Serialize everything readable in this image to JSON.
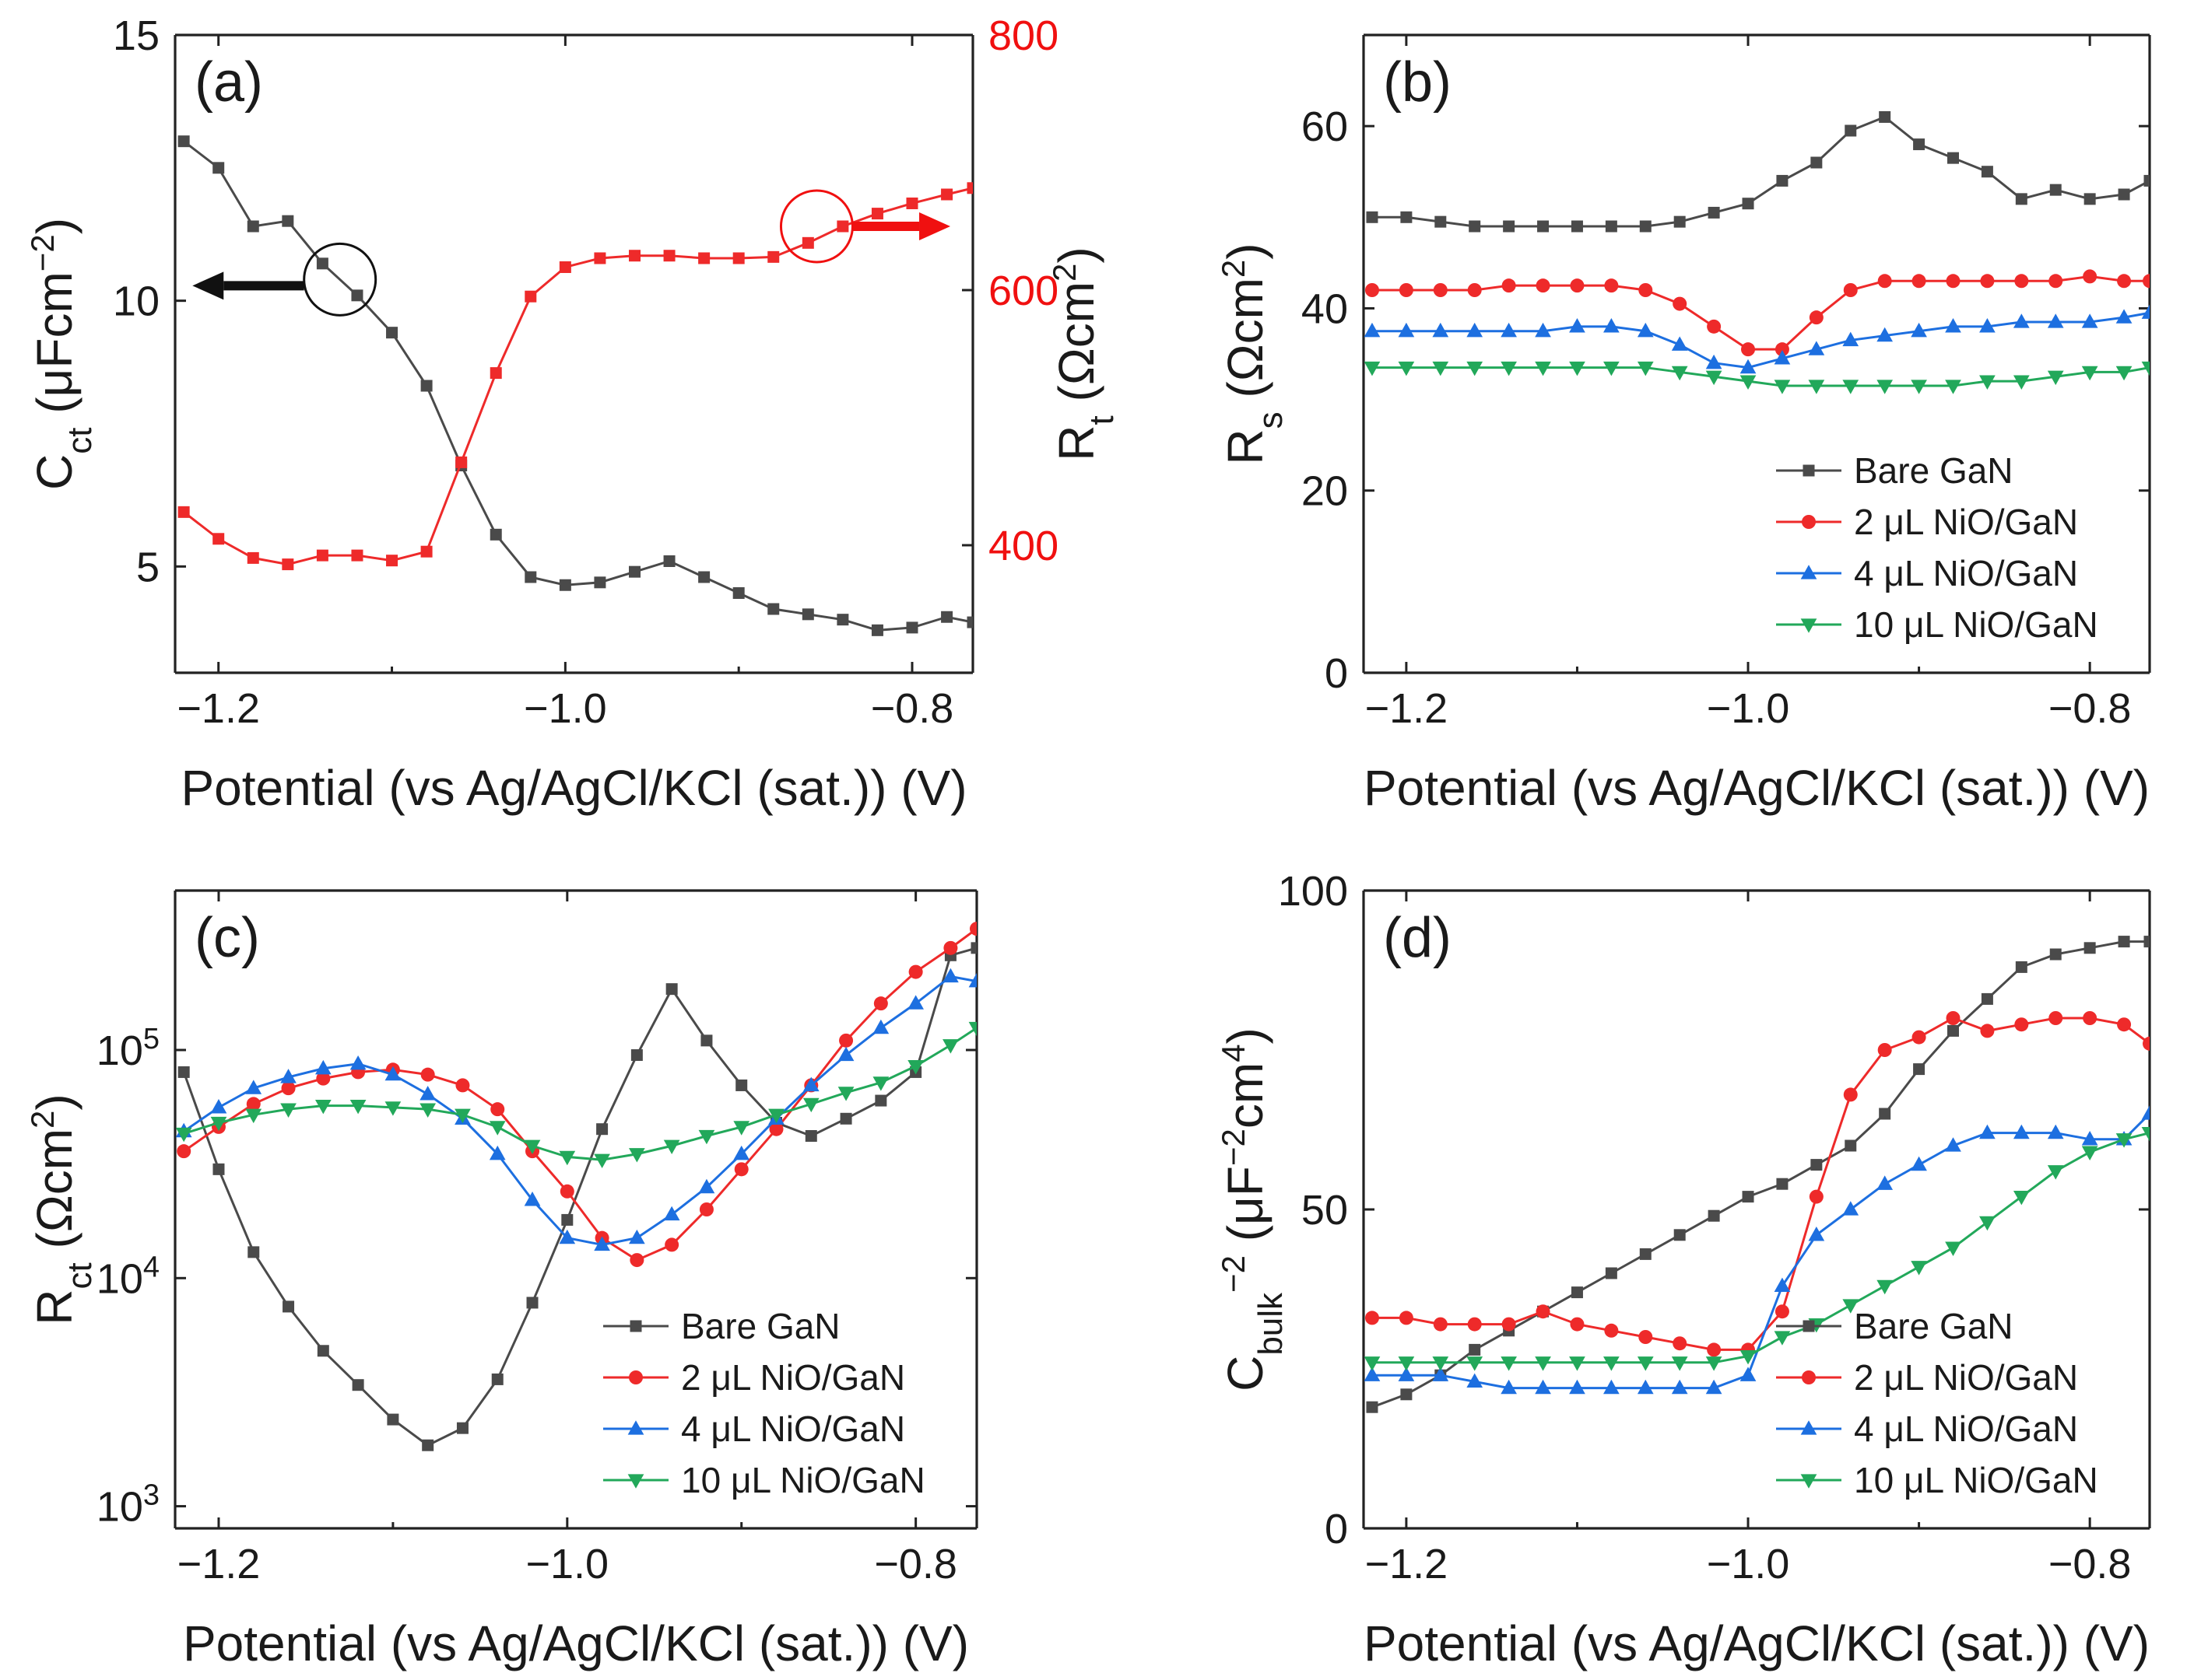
{
  "colors": {
    "bare": "#4a4a4a",
    "ni2": "#ee2a2a",
    "ni4": "#1d6fe0",
    "ni10": "#22a85a",
    "red_axis": "#f01010",
    "black": "#111111"
  },
  "chart_data": [
    {
      "id": "a",
      "panel_label": "(a)",
      "type": "line",
      "xlabel": "Potential (vs Ag/AgCl/KCl (sat.)) (V)",
      "ylabel": "C_ct (μFcm⁻²)",
      "ylabel_parts": {
        "main": "C",
        "sub": "ct",
        "unit": " (μFcm",
        "sup": "−2",
        "close": ")"
      },
      "y2label_parts": {
        "main": "R",
        "sub": "t",
        "unit": " (Ωcm",
        "sup": "2",
        "close": ")"
      },
      "xlim": [
        -1.225,
        -0.765
      ],
      "ylim": [
        3,
        15
      ],
      "y2lim": [
        300,
        800
      ],
      "xticks": [
        -1.2,
        -1.0,
        -0.8
      ],
      "xtick_labels": [
        "-1.2",
        "-1.0",
        "-0.8"
      ],
      "yticks": [
        5,
        10,
        15
      ],
      "ytick_labels": [
        "5",
        "10",
        "15"
      ],
      "y2ticks": [
        400,
        600,
        800
      ],
      "y2tick_labels": [
        "400",
        "600",
        "800"
      ],
      "series": [
        {
          "name": "C_ct",
          "axis": "left",
          "color_key": "bare",
          "marker": "square",
          "x": [
            -1.22,
            -1.2,
            -1.18,
            -1.16,
            -1.14,
            -1.12,
            -1.1,
            -1.08,
            -1.06,
            -1.04,
            -1.02,
            -1.0,
            -0.98,
            -0.96,
            -0.94,
            -0.92,
            -0.9,
            -0.88,
            -0.86,
            -0.84,
            -0.82,
            -0.8,
            -0.78,
            -0.765
          ],
          "y": [
            13.0,
            12.5,
            11.4,
            11.5,
            10.7,
            10.1,
            9.4,
            8.4,
            6.9,
            5.6,
            4.8,
            4.65,
            4.7,
            4.9,
            5.1,
            4.8,
            4.5,
            4.2,
            4.1,
            4.0,
            3.8,
            3.85,
            4.05,
            3.95
          ]
        },
        {
          "name": "R_t",
          "axis": "right",
          "color_key": "ni2",
          "marker": "square",
          "x": [
            -1.22,
            -1.2,
            -1.18,
            -1.16,
            -1.14,
            -1.12,
            -1.1,
            -1.08,
            -1.06,
            -1.04,
            -1.02,
            -1.0,
            -0.98,
            -0.96,
            -0.94,
            -0.92,
            -0.9,
            -0.88,
            -0.86,
            -0.84,
            -0.82,
            -0.8,
            -0.78,
            -0.765
          ],
          "y": [
            426,
            405,
            390,
            385,
            392,
            392,
            388,
            395,
            465,
            535,
            595,
            618,
            625,
            627,
            627,
            625,
            625,
            626,
            637,
            650,
            660,
            668,
            675,
            680
          ]
        }
      ],
      "annotations": {
        "left_arrow": "points to left axis",
        "right_arrow": "points to right axis"
      }
    },
    {
      "id": "b",
      "panel_label": "(b)",
      "type": "line",
      "xlabel": "Potential (vs Ag/AgCl/KCl (sat.)) (V)",
      "ylabel_parts": {
        "main": "R",
        "sub": "s",
        "unit": " (Ωcm",
        "sup": "2",
        "close": ")"
      },
      "xlim": [
        -1.225,
        -0.765
      ],
      "ylim": [
        0,
        70
      ],
      "xticks": [
        -1.2,
        -1.0,
        -0.8
      ],
      "xtick_labels": [
        "-1.2",
        "-1.0",
        "-0.8"
      ],
      "yticks": [
        0,
        20,
        40,
        60
      ],
      "ytick_labels": [
        "0",
        "20",
        "40",
        "60"
      ],
      "legend": [
        "Bare GaN",
        "2 μL NiO/GaN",
        "4 μL NiO/GaN",
        "10 μL NiO/GaN"
      ],
      "legend_position": "bottom-right",
      "series": [
        {
          "name": "Bare GaN",
          "color_key": "bare",
          "marker": "square",
          "x": [
            -1.22,
            -1.2,
            -1.18,
            -1.16,
            -1.14,
            -1.12,
            -1.1,
            -1.08,
            -1.06,
            -1.04,
            -1.02,
            -1.0,
            -0.98,
            -0.96,
            -0.94,
            -0.92,
            -0.9,
            -0.88,
            -0.86,
            -0.84,
            -0.82,
            -0.8,
            -0.78,
            -0.765
          ],
          "y": [
            50,
            50,
            49.5,
            49,
            49,
            49,
            49,
            49,
            49,
            49.5,
            50.5,
            51.5,
            54,
            56,
            59.5,
            61,
            58,
            56.5,
            55,
            52,
            53,
            52,
            52.5,
            54
          ]
        },
        {
          "name": "2 μL NiO/GaN",
          "color_key": "ni2",
          "marker": "circle",
          "x": [
            -1.22,
            -1.2,
            -1.18,
            -1.16,
            -1.14,
            -1.12,
            -1.1,
            -1.08,
            -1.06,
            -1.04,
            -1.02,
            -1.0,
            -0.98,
            -0.96,
            -0.94,
            -0.92,
            -0.9,
            -0.88,
            -0.86,
            -0.84,
            -0.82,
            -0.8,
            -0.78,
            -0.765
          ],
          "y": [
            42,
            42,
            42,
            42,
            42.5,
            42.5,
            42.5,
            42.5,
            42,
            40.5,
            38,
            35.5,
            35.5,
            39,
            42,
            43,
            43,
            43,
            43,
            43,
            43,
            43.5,
            43,
            43
          ]
        },
        {
          "name": "4 μL NiO/GaN",
          "color_key": "ni4",
          "marker": "triangle-up",
          "x": [
            -1.22,
            -1.2,
            -1.18,
            -1.16,
            -1.14,
            -1.12,
            -1.1,
            -1.08,
            -1.06,
            -1.04,
            -1.02,
            -1.0,
            -0.98,
            -0.96,
            -0.94,
            -0.92,
            -0.9,
            -0.88,
            -0.86,
            -0.84,
            -0.82,
            -0.8,
            -0.78,
            -0.765
          ],
          "y": [
            37.5,
            37.5,
            37.5,
            37.5,
            37.5,
            37.5,
            38,
            38,
            37.5,
            36,
            34,
            33.5,
            34.5,
            35.5,
            36.5,
            37,
            37.5,
            38,
            38,
            38.5,
            38.5,
            38.5,
            39,
            39.5
          ]
        },
        {
          "name": "10 μL NiO/GaN",
          "color_key": "ni10",
          "marker": "triangle-down",
          "x": [
            -1.22,
            -1.2,
            -1.18,
            -1.16,
            -1.14,
            -1.12,
            -1.1,
            -1.08,
            -1.06,
            -1.04,
            -1.02,
            -1.0,
            -0.98,
            -0.96,
            -0.94,
            -0.92,
            -0.9,
            -0.88,
            -0.86,
            -0.84,
            -0.82,
            -0.8,
            -0.78,
            -0.765
          ],
          "y": [
            33.5,
            33.5,
            33.5,
            33.5,
            33.5,
            33.5,
            33.5,
            33.5,
            33.5,
            33,
            32.5,
            32,
            31.5,
            31.5,
            31.5,
            31.5,
            31.5,
            31.5,
            32,
            32,
            32.5,
            33,
            33,
            33.5
          ]
        }
      ]
    },
    {
      "id": "c",
      "panel_label": "(c)",
      "type": "line",
      "yscale": "log",
      "xlabel": "Potential (vs Ag/AgCl/KCl (sat.)) (V)",
      "ylabel_parts": {
        "main": "R",
        "sub": "ct",
        "unit": " (Ωcm",
        "sup": "2",
        "close": ")"
      },
      "xlim": [
        -1.225,
        -0.765
      ],
      "ylim": [
        800,
        500000
      ],
      "xticks": [
        -1.2,
        -1.0,
        -0.8
      ],
      "xtick_labels": [
        "-1.2",
        "-1.0",
        "-0.8"
      ],
      "yticks": [
        1000,
        10000,
        100000
      ],
      "ytick_labels": [
        {
          "base": "10",
          "exp": "3"
        },
        {
          "base": "10",
          "exp": "4"
        },
        {
          "base": "10",
          "exp": "5"
        }
      ],
      "legend": [
        "Bare GaN",
        "2 μL NiO/GaN",
        "4 μL NiO/GaN",
        "10 μL NiO/GaN"
      ],
      "legend_position": "bottom-right",
      "series": [
        {
          "name": "Bare GaN",
          "color_key": "bare",
          "marker": "square",
          "x": [
            -1.22,
            -1.2,
            -1.18,
            -1.16,
            -1.14,
            -1.12,
            -1.1,
            -1.08,
            -1.06,
            -1.04,
            -1.02,
            -1.0,
            -0.98,
            -0.96,
            -0.94,
            -0.92,
            -0.9,
            -0.88,
            -0.86,
            -0.84,
            -0.82,
            -0.8,
            -0.78,
            -0.765
          ],
          "y": [
            80000,
            30000,
            13000,
            7500,
            4800,
            3400,
            2400,
            1850,
            2200,
            3600,
            7800,
            18000,
            45000,
            95000,
            185000,
            110000,
            70000,
            48000,
            42000,
            50000,
            60000,
            80000,
            260000,
            280000
          ]
        },
        {
          "name": "2 μL NiO/GaN",
          "color_key": "ni2",
          "marker": "circle",
          "x": [
            -1.22,
            -1.2,
            -1.18,
            -1.16,
            -1.14,
            -1.12,
            -1.1,
            -1.08,
            -1.06,
            -1.04,
            -1.02,
            -1.0,
            -0.98,
            -0.96,
            -0.94,
            -0.92,
            -0.9,
            -0.88,
            -0.86,
            -0.84,
            -0.82,
            -0.8,
            -0.78,
            -0.765
          ],
          "y": [
            36000,
            46000,
            58000,
            68000,
            75000,
            80000,
            82000,
            78000,
            70000,
            55000,
            36000,
            24000,
            15000,
            12000,
            14000,
            20000,
            30000,
            45000,
            70000,
            110000,
            160000,
            220000,
            280000,
            340000
          ]
        },
        {
          "name": "4 μL NiO/GaN",
          "color_key": "ni4",
          "marker": "triangle-up",
          "x": [
            -1.22,
            -1.2,
            -1.18,
            -1.16,
            -1.14,
            -1.12,
            -1.1,
            -1.08,
            -1.06,
            -1.04,
            -1.02,
            -1.0,
            -0.98,
            -0.96,
            -0.94,
            -0.92,
            -0.9,
            -0.88,
            -0.86,
            -0.84,
            -0.82,
            -0.8,
            -0.78,
            -0.765
          ],
          "y": [
            44000,
            56000,
            68000,
            76000,
            83000,
            87000,
            78000,
            64000,
            50000,
            35000,
            22000,
            15000,
            14000,
            15000,
            19000,
            25000,
            35000,
            50000,
            70000,
            95000,
            125000,
            160000,
            210000,
            200000
          ]
        },
        {
          "name": "10 μL NiO/GaN",
          "color_key": "ni10",
          "marker": "triangle-down",
          "x": [
            -1.22,
            -1.2,
            -1.18,
            -1.16,
            -1.14,
            -1.12,
            -1.1,
            -1.08,
            -1.06,
            -1.04,
            -1.02,
            -1.0,
            -0.98,
            -0.96,
            -0.94,
            -0.92,
            -0.9,
            -0.88,
            -0.86,
            -0.84,
            -0.82,
            -0.8,
            -0.78,
            -0.765
          ],
          "y": [
            43000,
            48000,
            52000,
            55000,
            57000,
            57000,
            56000,
            55000,
            52000,
            46000,
            38000,
            34000,
            33000,
            35000,
            38000,
            42000,
            46000,
            52000,
            58000,
            65000,
            72000,
            85000,
            105000,
            125000
          ]
        }
      ]
    },
    {
      "id": "d",
      "panel_label": "(d)",
      "type": "line",
      "xlabel": "Potential (vs Ag/AgCl/KCl (sat.)) (V)",
      "ylabel_parts": {
        "main": "C",
        "sub": "bulk",
        "sup1": "−2",
        "unit": " (μF",
        "sup": "−2",
        "close": "cm",
        "sup3": "4",
        "tail": ")"
      },
      "xlim": [
        -1.225,
        -0.765
      ],
      "ylim": [
        0,
        100
      ],
      "xticks": [
        -1.2,
        -1.0,
        -0.8
      ],
      "xtick_labels": [
        "-1.2",
        "-1.0",
        "-0.8"
      ],
      "yticks": [
        0,
        50,
        100
      ],
      "ytick_labels": [
        "0",
        "50",
        "100"
      ],
      "legend": [
        "Bare GaN",
        "2 μL NiO/GaN",
        "4 μL NiO/GaN",
        "10 μL NiO/GaN"
      ],
      "legend_position": "bottom-right",
      "series": [
        {
          "name": "Bare GaN",
          "color_key": "bare",
          "marker": "square",
          "x": [
            -1.22,
            -1.2,
            -1.18,
            -1.16,
            -1.14,
            -1.12,
            -1.1,
            -1.08,
            -1.06,
            -1.04,
            -1.02,
            -1.0,
            -0.98,
            -0.96,
            -0.94,
            -0.92,
            -0.9,
            -0.88,
            -0.86,
            -0.84,
            -0.82,
            -0.8,
            -0.78,
            -0.765
          ],
          "y": [
            19,
            21,
            24,
            28,
            31,
            34,
            37,
            40,
            43,
            46,
            49,
            52,
            54,
            57,
            60,
            65,
            72,
            78,
            83,
            88,
            90,
            91,
            92,
            92
          ]
        },
        {
          "name": "2 μL NiO/GaN",
          "color_key": "ni2",
          "marker": "circle",
          "x": [
            -1.22,
            -1.2,
            -1.18,
            -1.16,
            -1.14,
            -1.12,
            -1.1,
            -1.08,
            -1.06,
            -1.04,
            -1.02,
            -1.0,
            -0.98,
            -0.96,
            -0.94,
            -0.92,
            -0.9,
            -0.88,
            -0.86,
            -0.84,
            -0.82,
            -0.8,
            -0.78,
            -0.765
          ],
          "y": [
            33,
            33,
            32,
            32,
            32,
            34,
            32,
            31,
            30,
            29,
            28,
            28,
            34,
            52,
            68,
            75,
            77,
            80,
            78,
            79,
            80,
            80,
            79,
            76
          ]
        },
        {
          "name": "4 μL NiO/GaN",
          "color_key": "ni4",
          "marker": "triangle-up",
          "x": [
            -1.22,
            -1.2,
            -1.18,
            -1.16,
            -1.14,
            -1.12,
            -1.1,
            -1.08,
            -1.06,
            -1.04,
            -1.02,
            -1.0,
            -0.98,
            -0.96,
            -0.94,
            -0.92,
            -0.9,
            -0.88,
            -0.86,
            -0.84,
            -0.82,
            -0.8,
            -0.78,
            -0.765
          ],
          "y": [
            24,
            24,
            24,
            23,
            22,
            22,
            22,
            22,
            22,
            22,
            22,
            24,
            38,
            46,
            50,
            54,
            57,
            60,
            62,
            62,
            62,
            61,
            61,
            65
          ]
        },
        {
          "name": "10 μL NiO/GaN",
          "color_key": "ni10",
          "marker": "triangle-down",
          "x": [
            -1.22,
            -1.2,
            -1.18,
            -1.16,
            -1.14,
            -1.12,
            -1.1,
            -1.08,
            -1.06,
            -1.04,
            -1.02,
            -1.0,
            -0.98,
            -0.96,
            -0.94,
            -0.92,
            -0.9,
            -0.88,
            -0.86,
            -0.84,
            -0.82,
            -0.8,
            -0.78,
            -0.765
          ],
          "y": [
            26,
            26,
            26,
            26,
            26,
            26,
            26,
            26,
            26,
            26,
            26,
            27,
            30,
            32,
            35,
            38,
            41,
            44,
            48,
            52,
            56,
            59,
            61,
            62
          ]
        }
      ]
    }
  ]
}
